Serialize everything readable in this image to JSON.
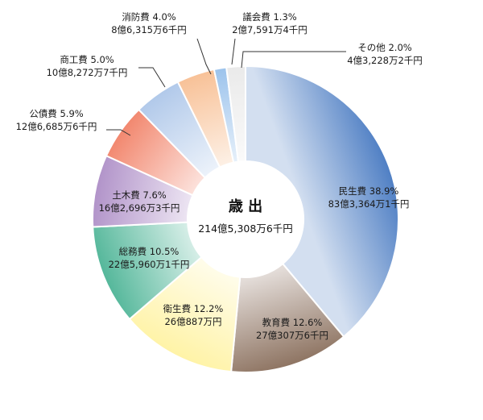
{
  "chart_data": {
    "type": "pie",
    "title": "歳 出",
    "total_label": "214億5,308万6千円",
    "slices": [
      {
        "name": "民生費",
        "percent": 38.9,
        "pct_label": "38.9%",
        "amount": "83億3,364万1千円",
        "color": "#4f7fc4"
      },
      {
        "name": "教育費",
        "percent": 12.6,
        "pct_label": "12.6%",
        "amount": "27億307万6千円",
        "color": "#8e7462"
      },
      {
        "name": "衛生費",
        "percent": 12.2,
        "pct_label": "12.2%",
        "amount": "26億887万円",
        "color": "#fff3a6"
      },
      {
        "name": "総務費",
        "percent": 10.5,
        "pct_label": "10.5%",
        "amount": "22億5,960万1千円",
        "color": "#54b79a"
      },
      {
        "name": "土木費",
        "percent": 7.6,
        "pct_label": "7.6%",
        "amount": "16億2,696万3千円",
        "color": "#b193c9"
      },
      {
        "name": "公債費",
        "percent": 5.9,
        "pct_label": "5.9%",
        "amount": "12億6,685万6千円",
        "color": "#f2876e"
      },
      {
        "name": "商工費",
        "percent": 5.0,
        "pct_label": "5.0%",
        "amount": "10億8,272万7千円",
        "color": "#b1c9ea"
      },
      {
        "name": "消防費",
        "percent": 4.0,
        "pct_label": "4.0%",
        "amount": "8億6,315万6千円",
        "color": "#f8c197"
      },
      {
        "name": "議会費",
        "percent": 1.3,
        "pct_label": "1.3%",
        "amount": "2億7,591万4千円",
        "color": "#9cc3ec"
      },
      {
        "name": "その他",
        "percent": 2.0,
        "pct_label": "2.0%",
        "amount": "4億3,228万2千円",
        "color": "#eaeaea"
      }
    ]
  }
}
